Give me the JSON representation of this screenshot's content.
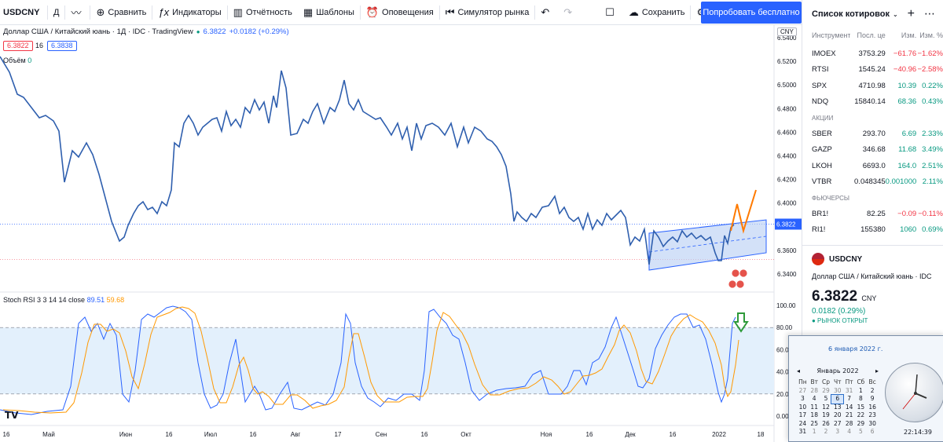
{
  "toolbar": {
    "symbol": "USDCNY",
    "interval": "Д",
    "compare": "Сравнить",
    "indicators": "Индикаторы",
    "reports": "Отчётность",
    "templates": "Шаблоны",
    "alerts": "Оповещения",
    "replay": "Симулятор рынка",
    "save": "Сохранить",
    "cta": "Попробовать бесплатно"
  },
  "legend": {
    "title": "Доллар США / Китайский юань · 1Д · IDC · TradingView",
    "price": "6.3822",
    "change": "+0.0182 (+0.29%)",
    "bid": "6.3822",
    "spread": "16",
    "ask": "6.3838",
    "volume_label": "Объём",
    "volume_value": "0",
    "rsi_label": "Stoch RSI 3 3 14 14 close",
    "rsi_k": "89.51",
    "rsi_d": "59.68",
    "currency": "CNY"
  },
  "price_axis": [
    "6.5400",
    "6.5200",
    "6.5000",
    "6.4800",
    "6.4600",
    "6.4400",
    "6.4200",
    "6.4000",
    "6.3800",
    "6.3600",
    "6.3400"
  ],
  "current_price_tag": "6.3822",
  "rsi_axis": [
    "100.00",
    "80.00",
    "60.00",
    "40.00",
    "20.00",
    "0.00"
  ],
  "time_axis": [
    "16",
    "Май",
    "Июн",
    "16",
    "Июл",
    "16",
    "Авг",
    "17",
    "Сен",
    "16",
    "Окт",
    "Ноя",
    "16",
    "Дек",
    "16",
    "2022",
    "18"
  ],
  "watchlist": {
    "title": "Список котировок",
    "columns": [
      "Инструмент",
      "Посл. це",
      "Изм.",
      "Изм. %"
    ],
    "indices": [
      {
        "sym": "IMOEX",
        "last": "3753.29",
        "chg": "−61.76",
        "pct": "−1.62%",
        "dir": "neg"
      },
      {
        "sym": "RTSI",
        "last": "1545.24",
        "chg": "−40.96",
        "pct": "−2.58%",
        "dir": "neg"
      },
      {
        "sym": "SPX",
        "last": "4710.98",
        "chg": "10.39",
        "pct": "0.22%",
        "dir": "pos"
      },
      {
        "sym": "NDQ",
        "last": "15840.14",
        "chg": "68.36",
        "pct": "0.43%",
        "dir": "pos"
      }
    ],
    "stocks_label": "АКЦИИ",
    "stocks": [
      {
        "sym": "SBER",
        "last": "293.70",
        "chg": "6.69",
        "pct": "2.33%",
        "dir": "pos"
      },
      {
        "sym": "GAZP",
        "last": "346.68",
        "chg": "11.68",
        "pct": "3.49%",
        "dir": "pos"
      },
      {
        "sym": "LKOH",
        "last": "6693.0",
        "chg": "164.0",
        "pct": "2.51%",
        "dir": "pos"
      },
      {
        "sym": "VTBR",
        "last": "0.048345",
        "chg": "0.001000",
        "pct": "2.11%",
        "dir": "pos"
      }
    ],
    "futures_label": "ФЬЮЧЕРСЫ",
    "futures": [
      {
        "sym": "BR1!",
        "last": "82.25",
        "chg": "−0.09",
        "pct": "−0.11%",
        "dir": "neg"
      },
      {
        "sym": "RI1!",
        "last": "155380",
        "chg": "1060",
        "pct": "0.69%",
        "dir": "pos"
      }
    ]
  },
  "detail": {
    "symbol": "USDCNY",
    "name": "Доллар США / Китайский юань · IDC",
    "price": "6.3822",
    "currency": "CNY",
    "change": "0.0182 (0.29%)",
    "status": "● РЫНОК ОТКРЫТ"
  },
  "calendar": {
    "date": "6 января 2022 г.",
    "month": "Январь 2022",
    "days_header": [
      "Пн",
      "Вт",
      "Ср",
      "Чт",
      "Пт",
      "Сб",
      "Вс"
    ],
    "weeks": [
      [
        "27",
        "28",
        "29",
        "30",
        "31",
        "1",
        "2"
      ],
      [
        "3",
        "4",
        "5",
        "6",
        "7",
        "8",
        "9"
      ],
      [
        "10",
        "11",
        "12",
        "13",
        "14",
        "15",
        "16"
      ],
      [
        "17",
        "18",
        "19",
        "20",
        "21",
        "22",
        "23"
      ],
      [
        "24",
        "25",
        "26",
        "27",
        "28",
        "29",
        "30"
      ],
      [
        "31",
        "1",
        "2",
        "3",
        "4",
        "5",
        "6"
      ]
    ],
    "time": "22:14:39"
  },
  "colors": {
    "price_line": "#2f5fae",
    "rsi_k": "#2962ff",
    "rsi_d": "#ff9800",
    "channel": "#2962ff",
    "accent": "#2962ff",
    "up": "#089981",
    "down": "#f23645"
  }
}
